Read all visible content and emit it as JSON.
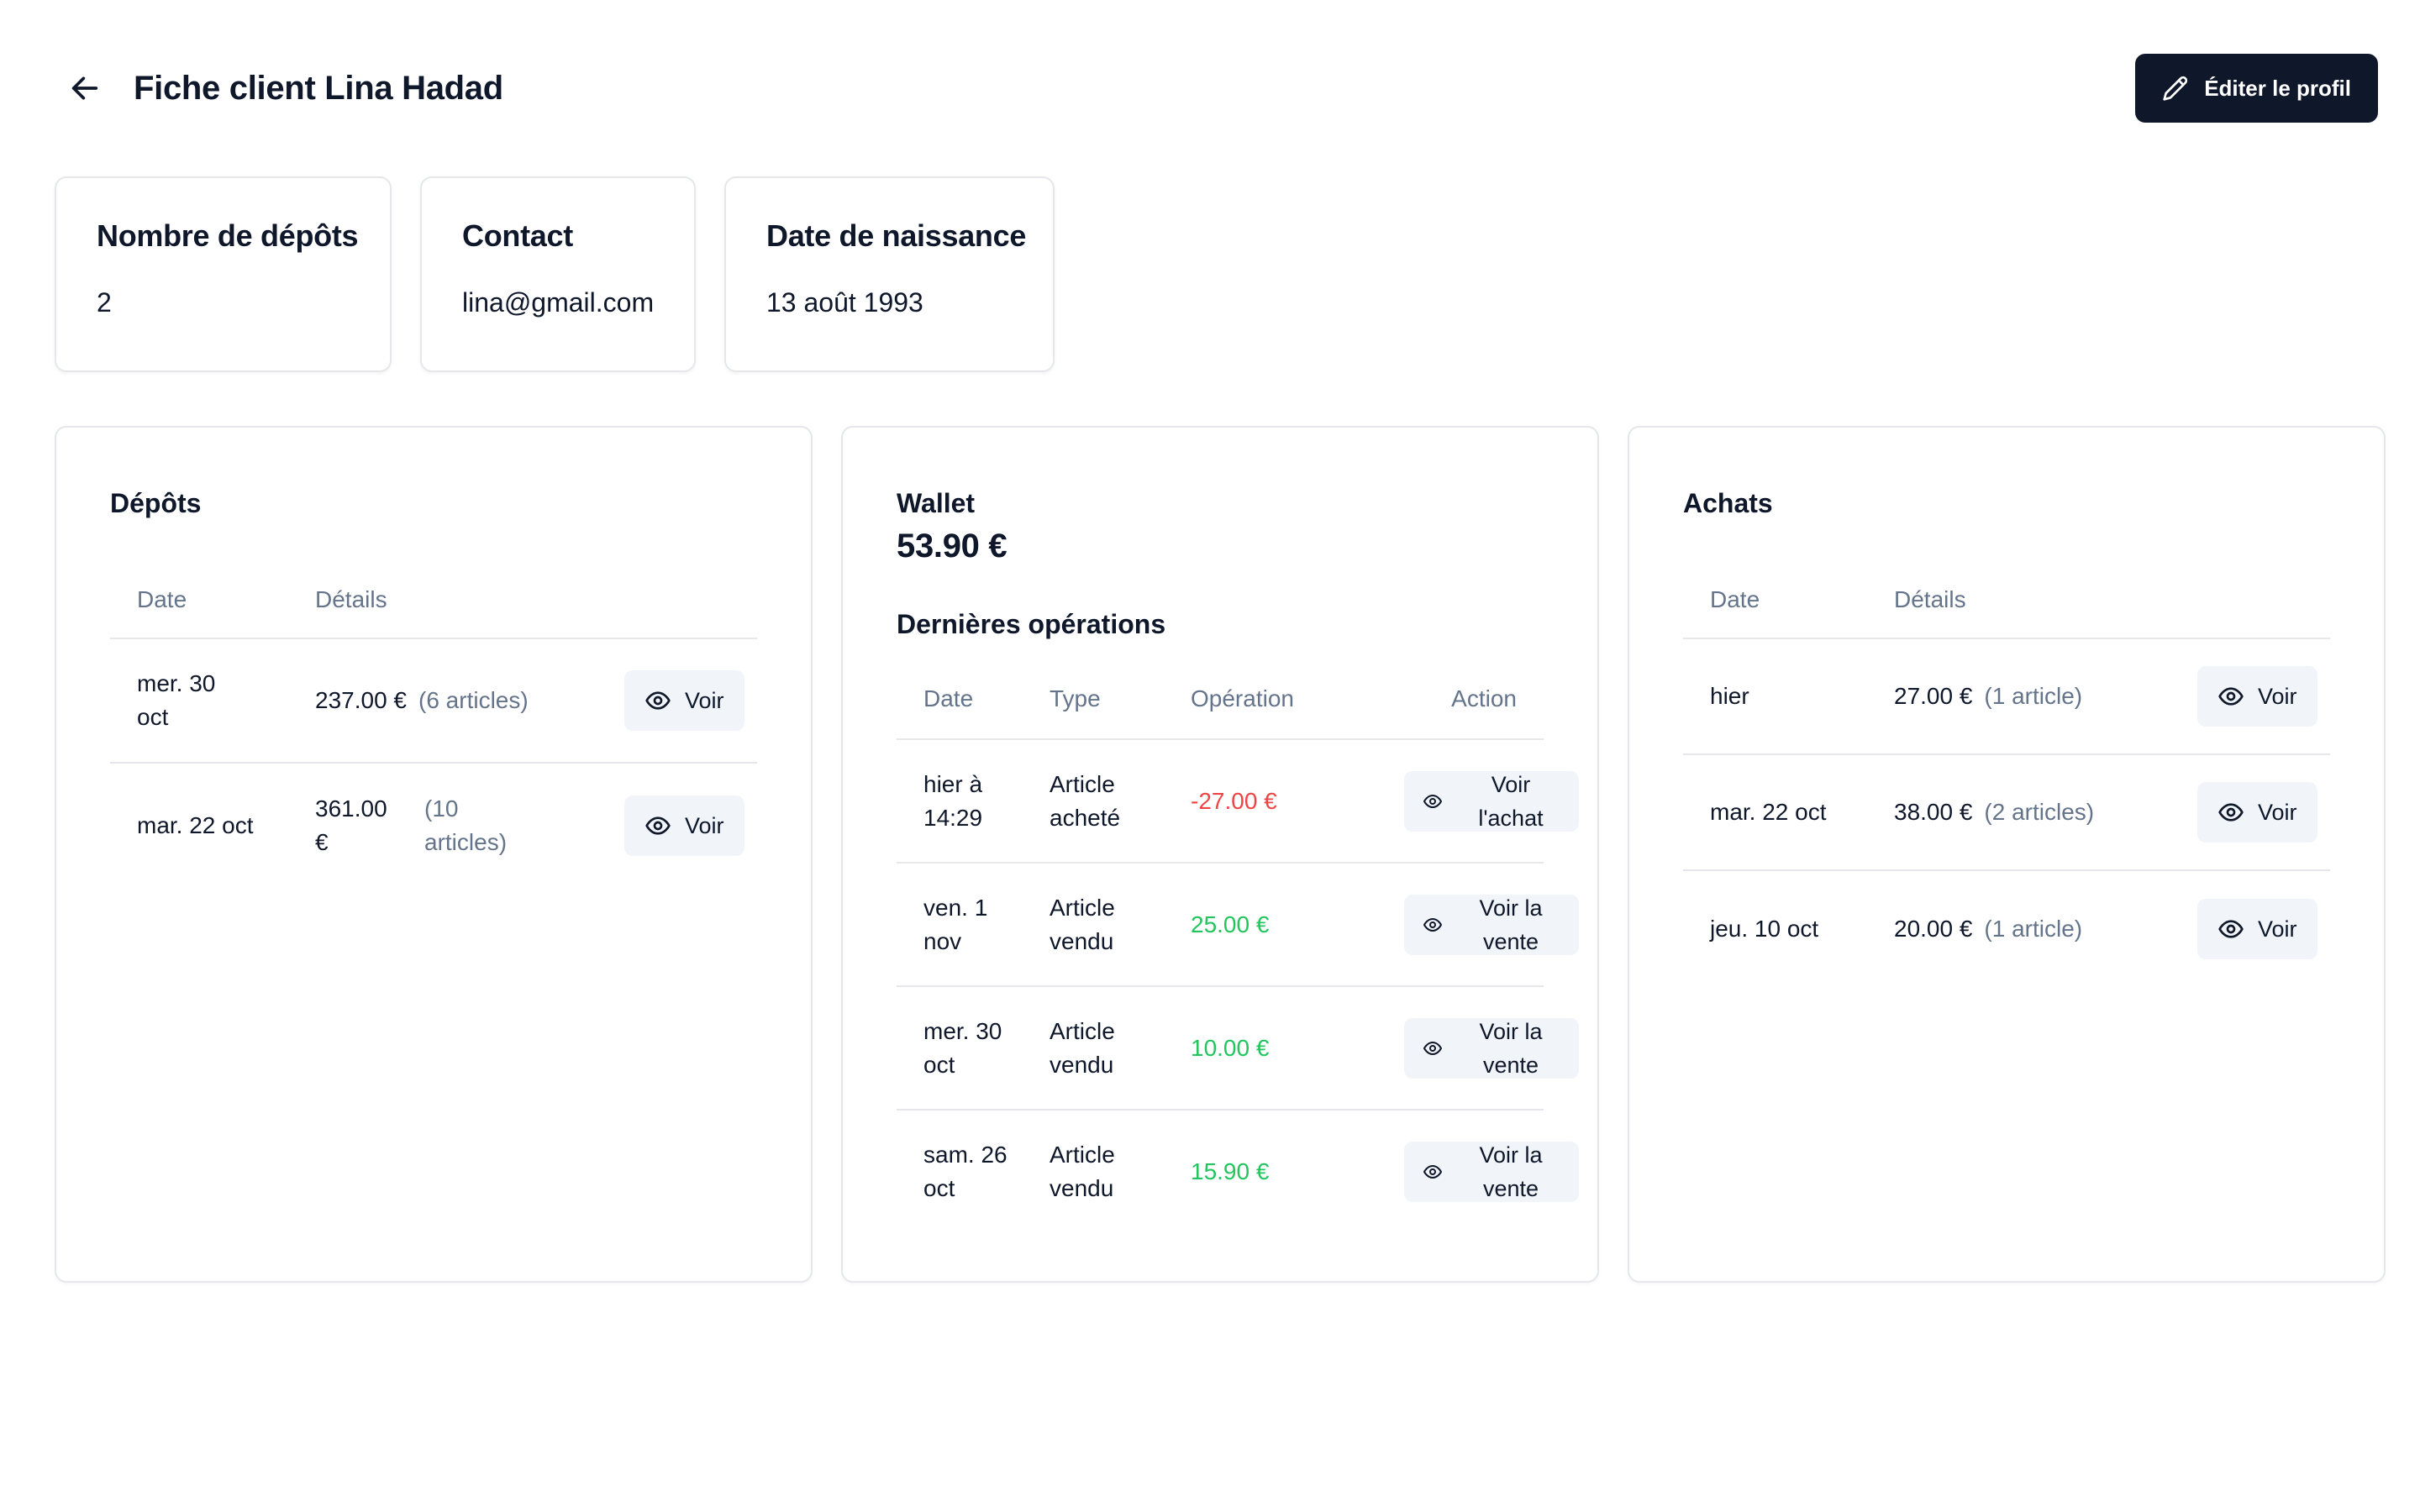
{
  "header": {
    "title": "Fiche client Lina Hadad",
    "edit_label": "Éditer le profil"
  },
  "info_cards": [
    {
      "label": "Nombre de dépôts",
      "value": "2"
    },
    {
      "label": "Contact",
      "value": "lina@gmail.com"
    },
    {
      "label": "Date de naissance",
      "value": "13 août 1993"
    }
  ],
  "depots": {
    "title": "Dépôts",
    "columns": {
      "date": "Date",
      "details": "Détails"
    },
    "rows": [
      {
        "date": "mer. 30 oct",
        "amount": "237.00 €",
        "articles": "(6 articles)",
        "action": "Voir"
      },
      {
        "date": "mar. 22 oct",
        "amount": "361.00 €",
        "articles": "(10 articles)",
        "action": "Voir"
      }
    ]
  },
  "wallet": {
    "title": "Wallet",
    "amount": "53.90 €",
    "ops_title": "Dernières opérations",
    "columns": {
      "date": "Date",
      "type": "Type",
      "operation": "Opération",
      "action": "Action"
    },
    "rows": [
      {
        "date": "hier à 14:29",
        "type": "Article acheté",
        "operation": "-27.00 €",
        "sign": "neg",
        "action": "Voir l'achat"
      },
      {
        "date": "ven. 1 nov",
        "type": "Article vendu",
        "operation": "25.00 €",
        "sign": "pos",
        "action": "Voir la vente"
      },
      {
        "date": "mer. 30 oct",
        "type": "Article vendu",
        "operation": "10.00 €",
        "sign": "pos",
        "action": "Voir la vente"
      },
      {
        "date": "sam. 26 oct",
        "type": "Article vendu",
        "operation": "15.90 €",
        "sign": "pos",
        "action": "Voir la vente"
      }
    ]
  },
  "achats": {
    "title": "Achats",
    "columns": {
      "date": "Date",
      "details": "Détails"
    },
    "rows": [
      {
        "date": "hier",
        "amount": "27.00 €",
        "articles": "(1 article)",
        "action": "Voir"
      },
      {
        "date": "mar. 22 oct",
        "amount": "38.00 €",
        "articles": "(2 articles)",
        "action": "Voir"
      },
      {
        "date": "jeu. 10 oct",
        "amount": "20.00 €",
        "articles": "(1 article)",
        "action": "Voir"
      }
    ]
  },
  "colors": {
    "primary": "#0f172a",
    "muted": "#64748b",
    "negative": "#ef4444",
    "positive": "#22c55e",
    "button_bg": "#f1f5f9",
    "border": "#e5e7eb"
  },
  "icons": {
    "back": "arrow-left-icon",
    "edit": "pencil-icon",
    "view": "eye-icon"
  }
}
